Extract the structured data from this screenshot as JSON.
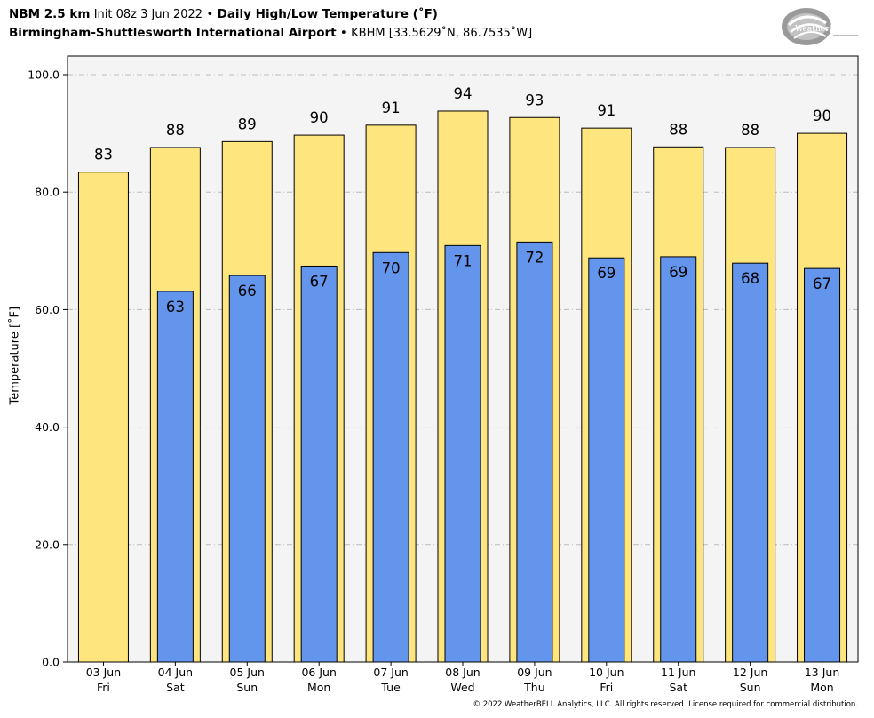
{
  "header": {
    "model": "NBM 2.5 km",
    "init": "Init 08z 3 Jun 2022",
    "bullet": "•",
    "title": "Daily High/Low Temperature (˚F)",
    "station": "Birmingham-Shuttlesworth International Airport",
    "station_id": "KBHM [33.5629˚N, 86.7535˚W]"
  },
  "logo": {
    "text": "WeatherBELL"
  },
  "footer": "© 2022 WeatherBELL Analytics, LLC. All rights reserved. License required for commercial distribution.",
  "colors": {
    "high": "#fee57d",
    "low": "#6495ed",
    "plot_bg": "#f4f4f4",
    "grid": "#bbbbbb"
  },
  "chart_data": {
    "type": "bar",
    "ylabel": "Temperature [˚F]",
    "ylim": [
      0,
      100
    ],
    "yticks": [
      "0.0",
      "20.0",
      "40.0",
      "60.0",
      "80.0",
      "100.0"
    ],
    "ytick_values": [
      0,
      20,
      40,
      60,
      80,
      100
    ],
    "grid": true,
    "categories": [
      {
        "date": "03 Jun",
        "day": "Fri"
      },
      {
        "date": "04 Jun",
        "day": "Sat"
      },
      {
        "date": "05 Jun",
        "day": "Sun"
      },
      {
        "date": "06 Jun",
        "day": "Mon"
      },
      {
        "date": "07 Jun",
        "day": "Tue"
      },
      {
        "date": "08 Jun",
        "day": "Wed"
      },
      {
        "date": "09 Jun",
        "day": "Thu"
      },
      {
        "date": "10 Jun",
        "day": "Fri"
      },
      {
        "date": "11 Jun",
        "day": "Sat"
      },
      {
        "date": "12 Jun",
        "day": "Sun"
      },
      {
        "date": "13 Jun",
        "day": "Mon"
      }
    ],
    "series": [
      {
        "values": [
          83.4,
          87.6,
          88.6,
          89.7,
          91.4,
          93.8,
          92.7,
          90.9,
          87.7,
          87.6,
          90.0
        ],
        "labels": [
          "83",
          "88",
          "89",
          "90",
          "91",
          "94",
          "93",
          "91",
          "88",
          "88",
          "90"
        ]
      },
      {
        "values": [
          null,
          63.1,
          65.8,
          67.4,
          69.7,
          70.9,
          71.5,
          68.8,
          69.0,
          67.9,
          67.0
        ],
        "labels": [
          "",
          "63",
          "66",
          "67",
          "70",
          "71",
          "72",
          "69",
          "69",
          "68",
          "67"
        ]
      }
    ]
  }
}
